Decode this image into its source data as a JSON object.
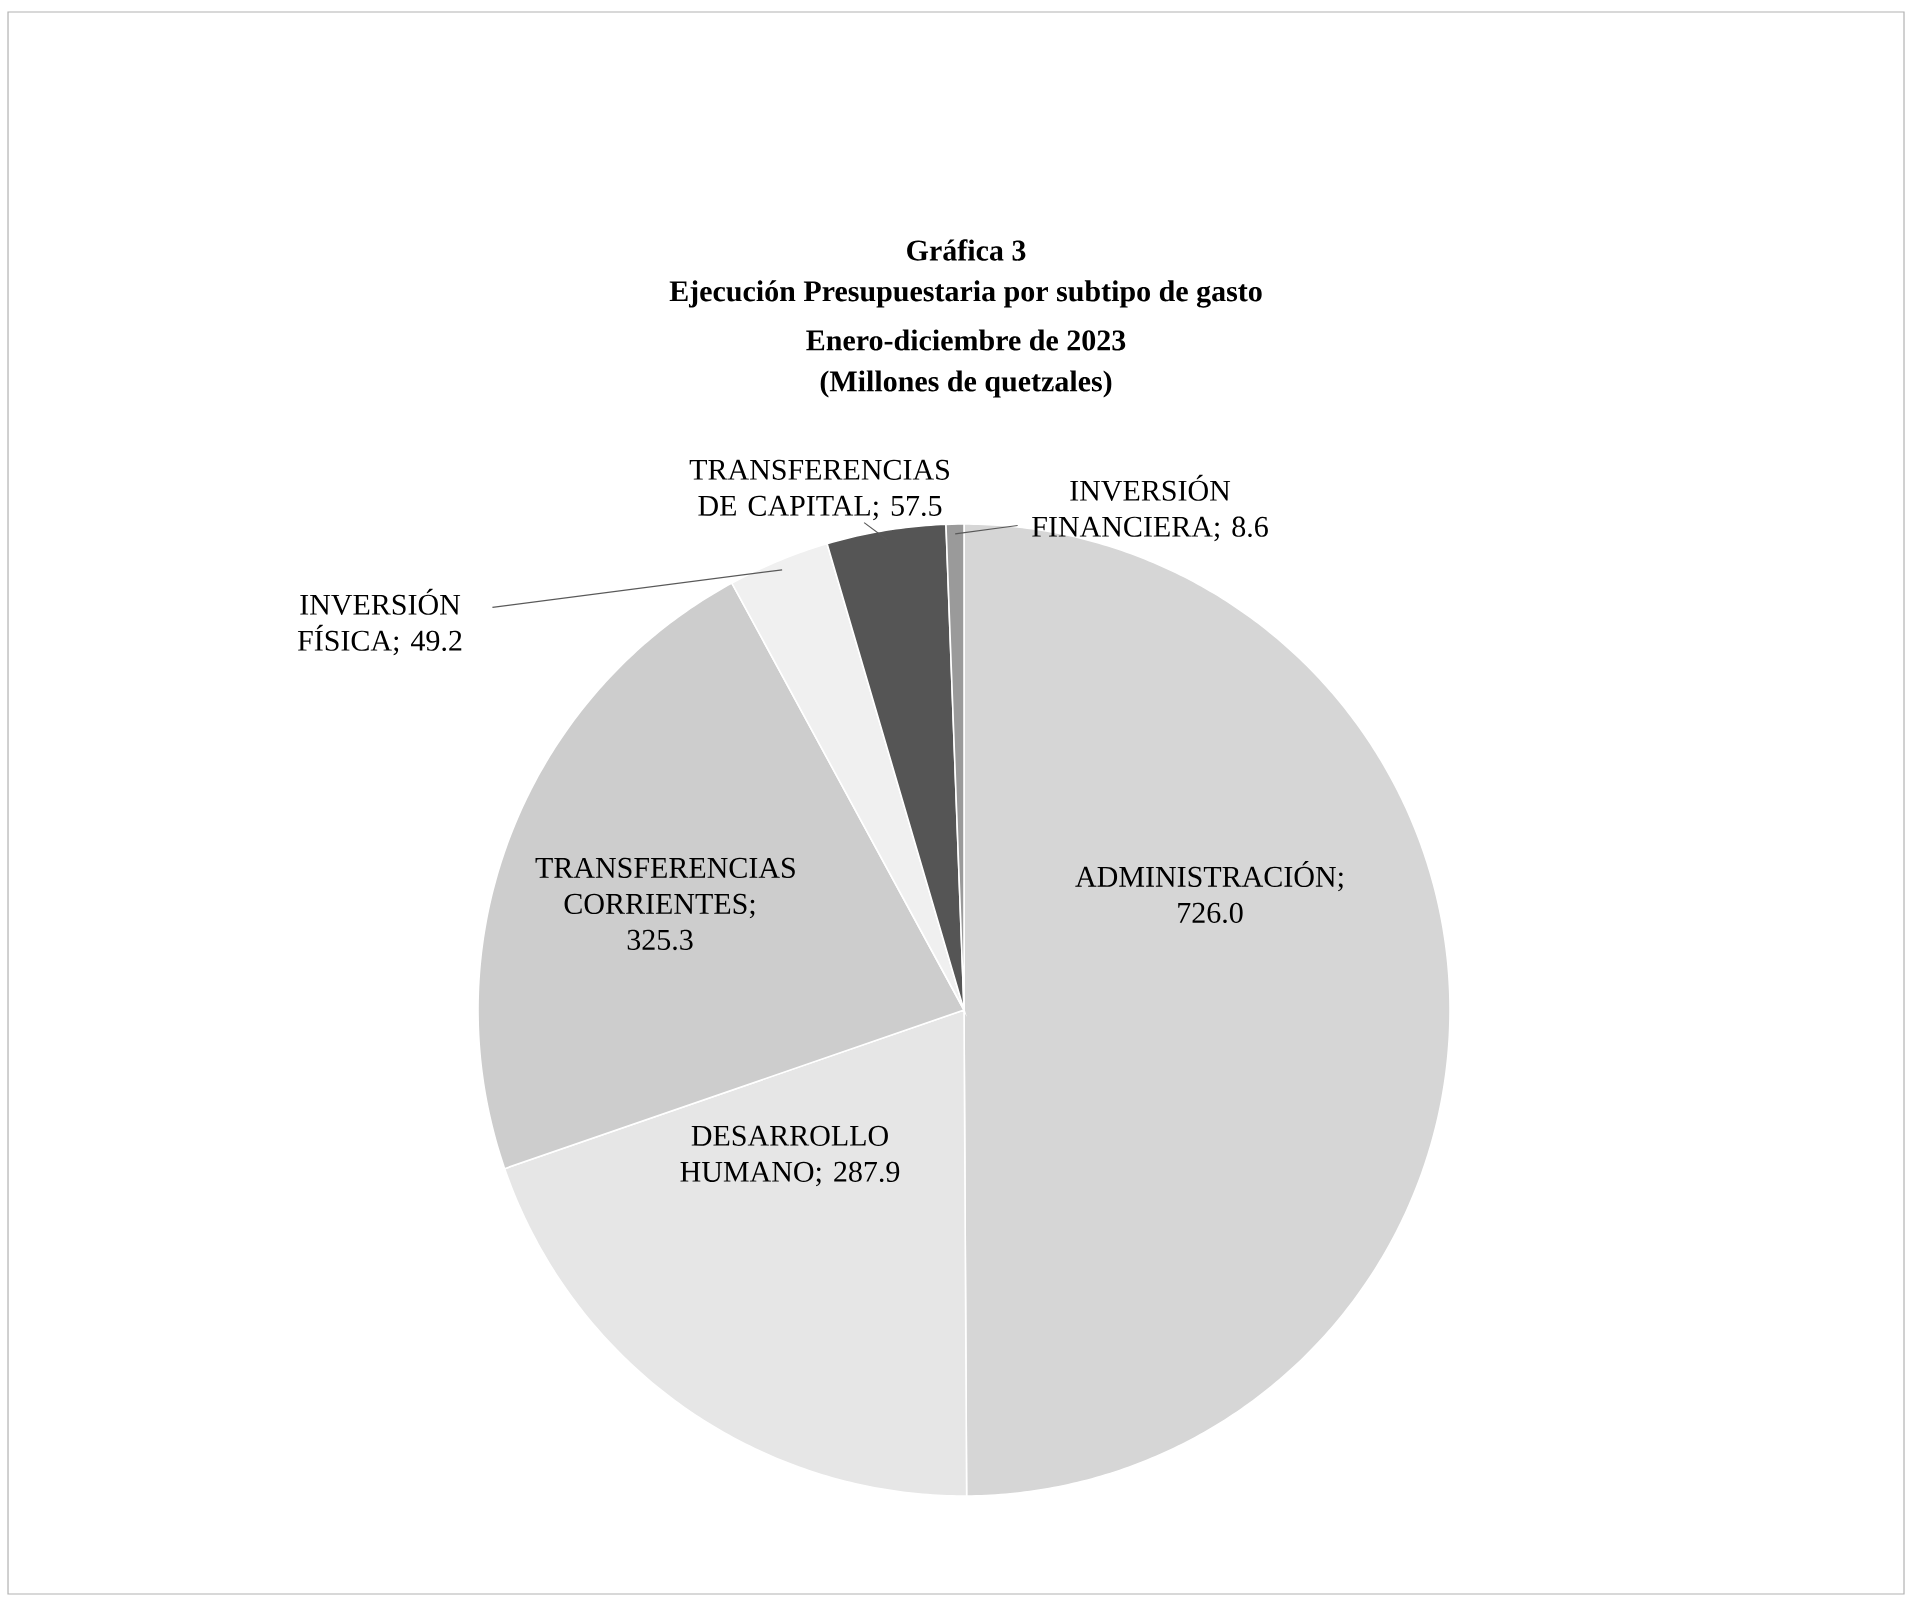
{
  "chart_data": {
    "type": "pie",
    "title": "Gráfica 3",
    "subtitle": "Ejecución Presupuestaria por subtipo de gasto",
    "annotations": [
      "Enero-diciembre de 2023",
      "(Millones de quetzales)"
    ],
    "categories": [
      "ADMINISTRACIÓN",
      "DESARROLLO HUMANO",
      "TRANSFERENCIAS CORRIENTES",
      "INVERSIÓN FÍSICA",
      "TRANSFERENCIAS DE CAPITAL",
      "INVERSIÓN FINANCIERA"
    ],
    "values": [
      726.0,
      287.9,
      325.3,
      49.2,
      57.5,
      8.6
    ],
    "value_labels": [
      "; 726.0",
      "; 287.9",
      "; 325.3",
      "; 49.2",
      "; 57.5",
      "; 8.6"
    ],
    "colors": [
      "#d6d6d6",
      "#e6e6e6",
      "#cdcdcd",
      "#f0f0f0",
      "#555555",
      "#9a9a9a"
    ]
  }
}
